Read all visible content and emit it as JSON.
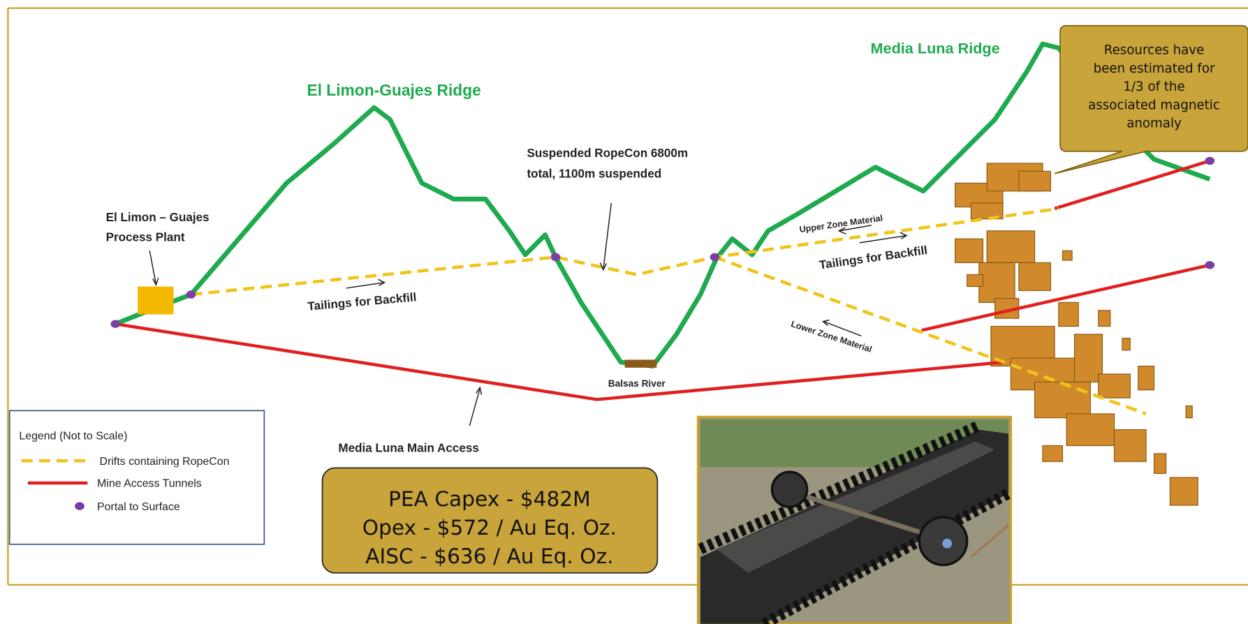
{
  "ridges": {
    "left": "El Limon-Guajes Ridge",
    "right": "Media Luna Ridge"
  },
  "callout": [
    "Resources have",
    "been estimated for",
    "1/3 of the",
    "associated magnetic",
    "anomaly"
  ],
  "ropecon_note": [
    "Suspended RopeCon 6800m",
    "total, 1100m suspended"
  ],
  "plant_label": [
    "El Limon – Guajes",
    "Process Plant"
  ],
  "tailings_left": "Tailings for Backfill",
  "tailings_right": "Tailings for Backfill",
  "upper_zone": "Upper Zone Material",
  "lower_zone": "Lower Zone Material",
  "river": "Balsas River",
  "main_access": "Media Luna Main Access",
  "legend": {
    "title": "Legend (Not to Scale)",
    "items": [
      "Drifts containing RopeCon",
      "Mine Access Tunnels",
      "Portal to Surface"
    ]
  },
  "costs": [
    "PEA Capex - $482M",
    "Opex - $572 / Au Eq. Oz.",
    "AISC - $636 / Au Eq. Oz."
  ]
}
